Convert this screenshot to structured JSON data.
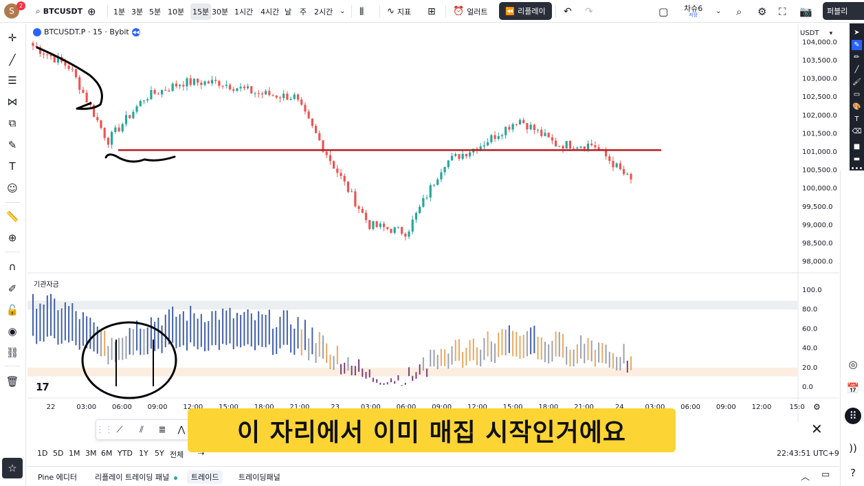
{
  "header": {
    "avatar_letter": "S",
    "notification_count": "2",
    "symbol": "BTCUSDT",
    "timeframes": [
      "1분",
      "3분",
      "5분",
      "10분",
      "15분",
      "30분",
      "1시간",
      "4시간",
      "날",
      "주",
      "2시간"
    ],
    "active_timeframe": "15분",
    "indicators_label": "지표",
    "alerts_label": "얼러트",
    "replay_label": "리플레이",
    "layout_name": "차슈6",
    "layout_sub": "저장",
    "publish_label": "퍼블리"
  },
  "chart": {
    "legend_title": "BTCUSDT.P · 15 · Bybit",
    "currency": "USDT",
    "price_ticks": [
      "104,000.0",
      "103,500.0",
      "103,000.0",
      "102,500.0",
      "102,000.0",
      "101,500.0",
      "101,000.0",
      "100,500.0",
      "100,000.0",
      "99,500.0",
      "99,000.0",
      "98,500.0",
      "98,000.0"
    ],
    "indicator_title": "기관자금",
    "indicator_ticks": [
      "100.0",
      "80.0",
      "60.0",
      "40.0",
      "20.0",
      "0.0"
    ],
    "time_ticks": [
      "22",
      "03:00",
      "06:00",
      "09:00",
      "12:00",
      "15:00",
      "18:00",
      "21:00",
      "23",
      "03:00",
      "06:00",
      "09:00",
      "12:00",
      "15:00",
      "18:00",
      "21:00",
      "24",
      "03:00",
      "06:00",
      "09:00",
      "12:00",
      "15:0"
    ],
    "tv_logo": "17",
    "colors": {
      "up": "#26a69a",
      "down": "#ef5350",
      "level_line": "#b71c1c"
    }
  },
  "range_bar": {
    "ranges": [
      "1D",
      "5D",
      "1M",
      "3M",
      "6M",
      "YTD",
      "1Y",
      "5Y",
      "전체"
    ],
    "clock": "22:43:51 UTC+9"
  },
  "bottom_tabs": {
    "pine": "Pine 에디터",
    "replay_panel": "리플레이 트레이딩 패널",
    "trade": "트레이드",
    "trading_panel": "트레이딩패널"
  },
  "subtitle": "이 자리에서 이미 매집 시작인거에요",
  "chart_data": {
    "type": "line",
    "series": [
      {
        "name": "BTCUSDT.P · 15 · Bybit",
        "x": [
          "22 00:00",
          "22 03:00",
          "22 06:00",
          "22 09:00",
          "22 12:00",
          "22 15:00",
          "22 18:00",
          "22 21:00",
          "23 00:00",
          "23 03:00",
          "23 06:00",
          "23 09:00",
          "23 12:00",
          "23 15:00",
          "23 18:00",
          "23 21:00",
          "24 00:00"
        ],
        "values": [
          103900,
          103300,
          101300,
          102500,
          102900,
          102900,
          102600,
          102500,
          100700,
          99000,
          98800,
          100700,
          101200,
          101900,
          101200,
          101200,
          100200
        ]
      }
    ],
    "level_line": 101050,
    "ylim": [
      97900,
      104100
    ]
  }
}
